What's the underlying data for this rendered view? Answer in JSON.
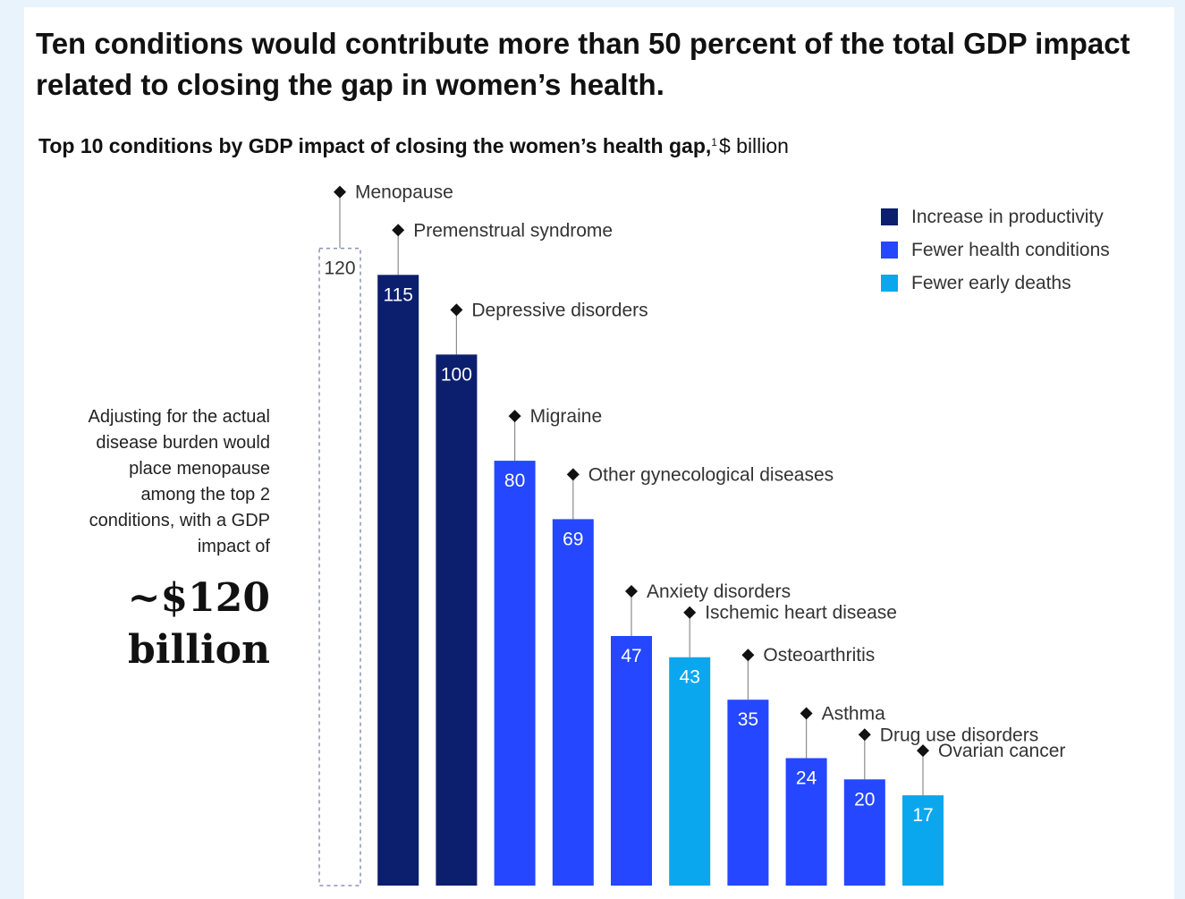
{
  "title": "Ten conditions would contribute more than 50 percent of the total GDP impact related to closing the gap in women’s health.",
  "subtitle": {
    "bold_text": "Top 10 conditions by GDP impact of closing the women’s health gap,",
    "footnote": "1",
    "unit": "$ billion"
  },
  "side_note": {
    "text": "Adjusting for the actual disease burden would place menopause among the top 2 conditions, with a GDP impact of",
    "value_line1": "~$120",
    "value_line2": "billion"
  },
  "colors": {
    "increase_in_productivity": "#0c1f6e",
    "fewer_health_conditions": "#2447ff",
    "fewer_early_deaths": "#0aa7ef",
    "adjusted_outline": "#8a92b8"
  },
  "legend": [
    {
      "label": "Increase in productivity",
      "color": "#0c1f6e"
    },
    {
      "label": "Fewer health conditions",
      "color": "#2447ff"
    },
    {
      "label": "Fewer early deaths",
      "color": "#0aa7ef"
    }
  ],
  "chart_data": {
    "type": "bar",
    "categories": [
      "Menopause",
      "Premenstrual syndrome",
      "Depressive disorders",
      "Migraine",
      "Other gynecological diseases",
      "Anxiety disorders",
      "Ischemic heart disease",
      "Osteoarthritis",
      "Asthma",
      "Drug use disorders",
      "Ovarian cancer"
    ],
    "values": [
      120,
      115,
      100,
      80,
      69,
      47,
      43,
      35,
      24,
      20,
      17
    ],
    "value_labels": [
      "120",
      "115",
      "100",
      "80",
      "69",
      "47",
      "43",
      "35",
      "24",
      "20",
      "17"
    ],
    "categories_style": [
      "dashed-outline",
      "increase_in_productivity",
      "increase_in_productivity",
      "fewer_health_conditions",
      "fewer_health_conditions",
      "fewer_health_conditions",
      "fewer_early_deaths",
      "fewer_health_conditions",
      "fewer_health_conditions",
      "fewer_health_conditions",
      "fewer_early_deaths"
    ],
    "title": "Top 10 conditions by GDP impact of closing the women’s health gap, $ billion",
    "xlabel": "",
    "ylabel": "",
    "ylim": [
      0,
      126
    ],
    "grid": false,
    "legend_position": "top-right"
  }
}
